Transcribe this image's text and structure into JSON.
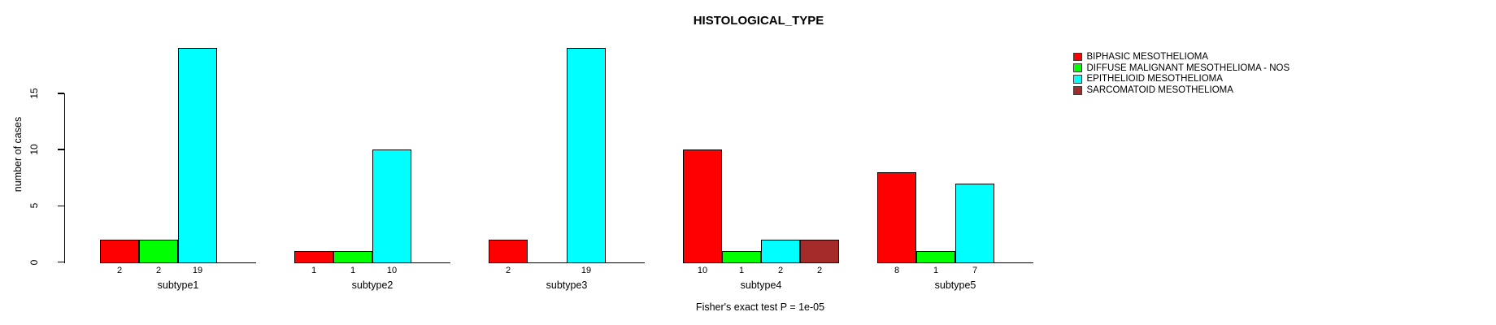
{
  "chart_data": {
    "type": "bar",
    "title": "HISTOLOGICAL_TYPE",
    "ylabel": "number of cases",
    "footnote": "Fisher's exact test P = 1e-05",
    "yticks": [
      0,
      5,
      10,
      15
    ],
    "ylim": [
      0,
      19
    ],
    "grid": false,
    "legend_position": "right",
    "bar_value_labels": "below each nonzero bar",
    "categories": [
      "subtype1",
      "subtype2",
      "subtype3",
      "subtype4",
      "subtype5"
    ],
    "series": [
      {
        "name": "BIPHASIC MESOTHELIOMA",
        "color": "#ff0000",
        "values": [
          2,
          1,
          2,
          10,
          8
        ]
      },
      {
        "name": "DIFFUSE MALIGNANT MESOTHELIOMA - NOS",
        "color": "#00ff00",
        "values": [
          2,
          1,
          0,
          1,
          1
        ]
      },
      {
        "name": "EPITHELIOID MESOTHELIOMA",
        "color": "#00ffff",
        "values": [
          19,
          10,
          19,
          2,
          7
        ]
      },
      {
        "name": "SARCOMATOID MESOTHELIOMA",
        "color": "#a52a2a",
        "values": [
          0,
          0,
          0,
          2,
          0
        ]
      }
    ]
  }
}
